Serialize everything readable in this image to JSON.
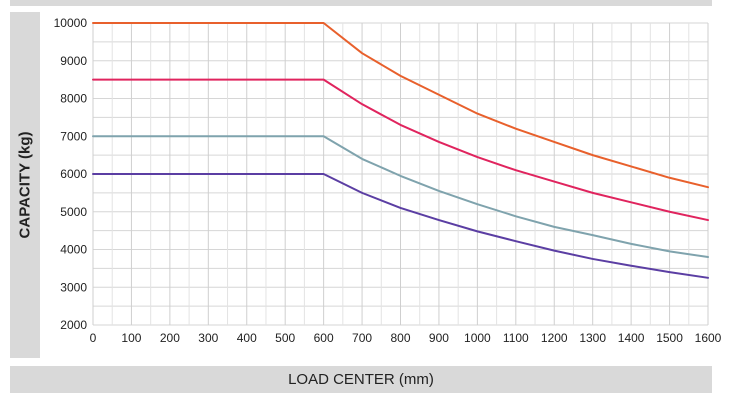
{
  "chart_data": {
    "type": "line",
    "title": "",
    "xlabel": "LOAD CENTER (mm)",
    "ylabel": "CAPACITY (kg)",
    "xlim": [
      0,
      1600
    ],
    "ylim": [
      2000,
      10000
    ],
    "xticks": [
      0,
      100,
      200,
      300,
      400,
      500,
      600,
      700,
      800,
      900,
      1000,
      1100,
      1200,
      1300,
      1400,
      1500,
      1600
    ],
    "yticks": [
      2000,
      3000,
      4000,
      5000,
      6000,
      7000,
      8000,
      9000,
      10000
    ],
    "grid": true,
    "series": [
      {
        "color": "#e8602c",
        "x": [
          0,
          600,
          700,
          800,
          900,
          1000,
          1100,
          1200,
          1300,
          1400,
          1500,
          1600
        ],
        "y": [
          10000,
          10000,
          9200,
          8600,
          8100,
          7600,
          7200,
          6850,
          6500,
          6200,
          5900,
          5650
        ]
      },
      {
        "color": "#e0245e",
        "x": [
          0,
          600,
          700,
          800,
          900,
          1000,
          1100,
          1200,
          1300,
          1400,
          1500,
          1600
        ],
        "y": [
          8500,
          8500,
          7850,
          7300,
          6850,
          6450,
          6100,
          5800,
          5500,
          5250,
          5000,
          4780
        ]
      },
      {
        "color": "#7fa3ad",
        "x": [
          0,
          600,
          700,
          800,
          900,
          1000,
          1100,
          1200,
          1300,
          1400,
          1500,
          1600
        ],
        "y": [
          7000,
          7000,
          6400,
          5950,
          5550,
          5200,
          4880,
          4600,
          4380,
          4150,
          3950,
          3800
        ]
      },
      {
        "color": "#5b3ea3",
        "x": [
          0,
          600,
          700,
          800,
          900,
          1000,
          1100,
          1200,
          1300,
          1400,
          1500,
          1600
        ],
        "y": [
          6000,
          6000,
          5500,
          5100,
          4780,
          4480,
          4220,
          3970,
          3750,
          3570,
          3400,
          3250
        ]
      }
    ]
  }
}
